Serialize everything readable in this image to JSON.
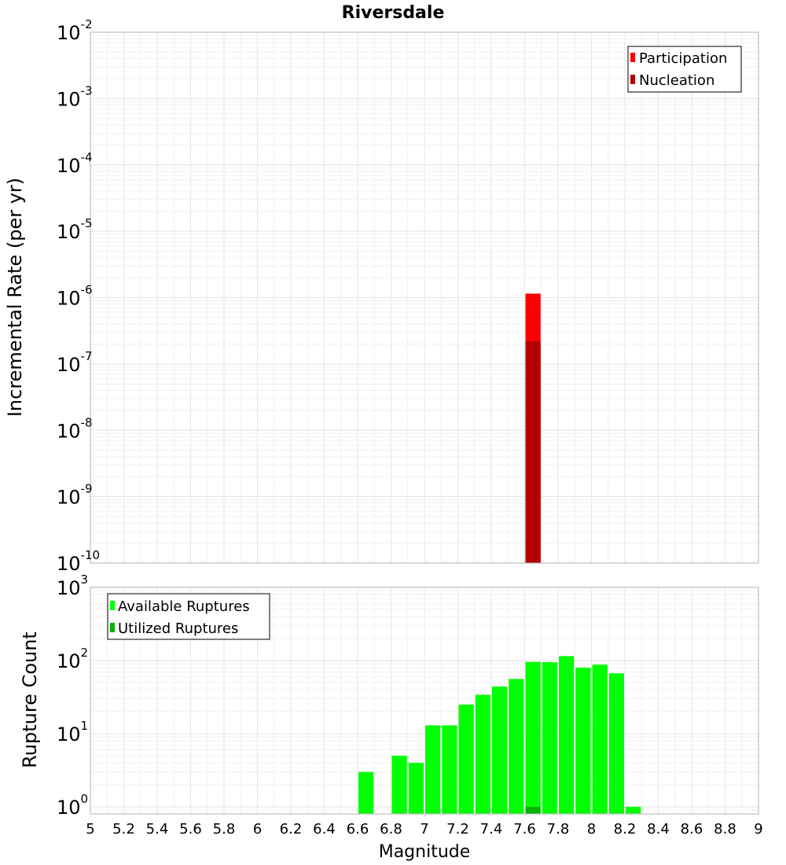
{
  "chart_data": [
    {
      "type": "bar",
      "title": "Riversdale",
      "ylabel": "Incremental Rate (per yr)",
      "xlabel": "",
      "xlim": [
        5,
        9
      ],
      "ylim": [
        1e-10,
        0.01
      ],
      "yscale": "log",
      "bin_width": 0.1,
      "grid": true,
      "legend_position": "top-right",
      "yticks": [
        {
          "base": "10",
          "exp": "-10",
          "value": 1e-10
        },
        {
          "base": "10",
          "exp": "-9",
          "value": 1e-09
        },
        {
          "base": "10",
          "exp": "-8",
          "value": 1e-08
        },
        {
          "base": "10",
          "exp": "-7",
          "value": 1e-07
        },
        {
          "base": "10",
          "exp": "-6",
          "value": 1e-06
        },
        {
          "base": "10",
          "exp": "-5",
          "value": 1e-05
        },
        {
          "base": "10",
          "exp": "-4",
          "value": 0.0001
        },
        {
          "base": "10",
          "exp": "-3",
          "value": 0.001
        },
        {
          "base": "10",
          "exp": "-2",
          "value": 0.01
        }
      ],
      "series": [
        {
          "name": "Participation",
          "color": "#ff0000",
          "x": [
            7.65
          ],
          "values": [
            1.15e-06
          ]
        },
        {
          "name": "Nucleation",
          "color": "#b30000",
          "x": [
            7.65
          ],
          "values": [
            2.2e-07
          ]
        }
      ]
    },
    {
      "type": "bar",
      "title": "",
      "ylabel": "Rupture Count",
      "xlabel": "Magnitude",
      "xlim": [
        5,
        9
      ],
      "ylim": [
        0.8,
        1000
      ],
      "yscale": "log",
      "bin_width": 0.1,
      "grid": true,
      "legend_position": "top-left",
      "xticks": [
        "5",
        "5.2",
        "5.4",
        "5.6",
        "5.8",
        "6",
        "6.2",
        "6.4",
        "6.6",
        "6.8",
        "7",
        "7.2",
        "7.4",
        "7.6",
        "7.8",
        "8",
        "8.2",
        "8.4",
        "8.6",
        "8.8",
        "9"
      ],
      "yticks": [
        {
          "base": "10",
          "exp": "0",
          "value": 1
        },
        {
          "base": "10",
          "exp": "1",
          "value": 10
        },
        {
          "base": "10",
          "exp": "2",
          "value": 100
        },
        {
          "base": "10",
          "exp": "3",
          "value": 1000
        }
      ],
      "series": [
        {
          "name": "Available Ruptures",
          "color": "#00ff00",
          "x": [
            6.65,
            6.85,
            6.95,
            7.05,
            7.15,
            7.25,
            7.35,
            7.45,
            7.55,
            7.65,
            7.75,
            7.85,
            7.95,
            8.05,
            8.15,
            8.25
          ],
          "values": [
            3,
            5,
            4,
            13,
            13,
            25,
            34,
            44,
            56,
            96,
            95,
            115,
            80,
            88,
            67,
            1
          ]
        },
        {
          "name": "Utilized Ruptures",
          "color": "#00b400",
          "x": [
            7.65
          ],
          "values": [
            1
          ]
        }
      ]
    }
  ]
}
